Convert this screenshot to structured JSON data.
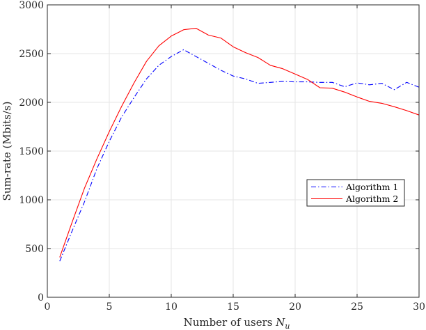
{
  "chart_data": {
    "type": "line",
    "title": "",
    "xlabel": "Number of users ",
    "xlabel_math": "N",
    "xlabel_sub": "u",
    "ylabel": "Sum-rate (Mbits/s)",
    "xlim": [
      0,
      30
    ],
    "ylim": [
      0,
      3000
    ],
    "xticks": [
      0,
      5,
      10,
      15,
      20,
      25,
      30
    ],
    "yticks": [
      0,
      500,
      1000,
      1500,
      2000,
      2500,
      3000
    ],
    "grid": true,
    "legend_position": "right",
    "x": [
      1,
      2,
      3,
      4,
      5,
      6,
      7,
      8,
      9,
      10,
      11,
      12,
      13,
      14,
      15,
      16,
      17,
      18,
      19,
      20,
      21,
      22,
      23,
      24,
      25,
      26,
      27,
      28,
      29,
      30
    ],
    "series": [
      {
        "name": "Algorithm 1",
        "color": "#0000ff",
        "style": "dashdot",
        "values": [
          370,
          680,
          980,
          1320,
          1600,
          1850,
          2050,
          2240,
          2380,
          2470,
          2540,
          2470,
          2400,
          2330,
          2270,
          2240,
          2195,
          2205,
          2215,
          2210,
          2210,
          2205,
          2205,
          2160,
          2200,
          2180,
          2195,
          2130,
          2205,
          2155
        ]
      },
      {
        "name": "Algorithm 2",
        "color": "#ff0000",
        "style": "solid",
        "values": [
          410,
          770,
          1120,
          1420,
          1700,
          1960,
          2200,
          2420,
          2580,
          2680,
          2745,
          2760,
          2690,
          2660,
          2570,
          2510,
          2460,
          2380,
          2345,
          2290,
          2235,
          2150,
          2145,
          2105,
          2055,
          2010,
          1990,
          1955,
          1915,
          1870
        ]
      }
    ]
  }
}
